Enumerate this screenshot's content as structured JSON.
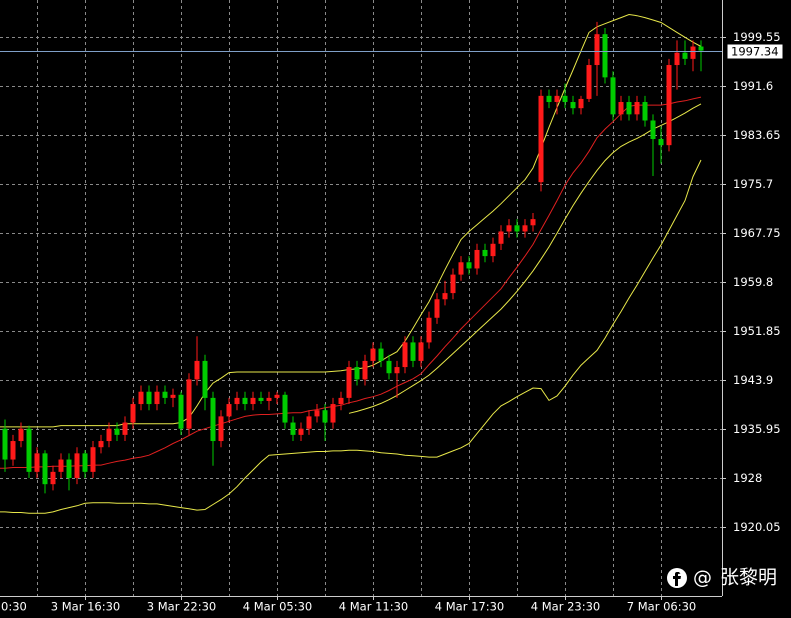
{
  "chart_data": {
    "type": "candlestick",
    "ylim": [
      1908.86,
      2005.55
    ],
    "yticks": [
      1920.05,
      1928.0,
      1935.95,
      1943.9,
      1951.85,
      1959.8,
      1967.75,
      1975.7,
      1983.65,
      1991.6,
      1999.55
    ],
    "grid": true,
    "up_color": "#ff1a1a",
    "down_color": "#00cc00",
    "current_price": 1997.34,
    "current_price_color": "#7f9fc8",
    "categories": [
      "0:30",
      null,
      null,
      null,
      null,
      null,
      null,
      null,
      null,
      null,
      null,
      null,
      "3 Mar 16:30",
      null,
      null,
      null,
      null,
      null,
      null,
      null,
      null,
      null,
      null,
      null,
      "3 Mar 22:30",
      null,
      null,
      null,
      null,
      null,
      null,
      null,
      null,
      null,
      null,
      null,
      "4 Mar 05:30",
      null,
      null,
      null,
      null,
      null,
      null,
      null,
      null,
      null,
      null,
      null,
      "4 Mar 11:30",
      null,
      null,
      null,
      null,
      null,
      null,
      null,
      null,
      null,
      null,
      null,
      "4 Mar 17:30",
      null,
      null,
      null,
      null,
      null,
      null,
      null,
      null,
      null,
      null,
      null,
      "4 Mar 23:30",
      null,
      null,
      null,
      null,
      null,
      null,
      null,
      null,
      null,
      null,
      null,
      "7 Mar 06:30",
      null,
      null,
      null,
      null,
      null
    ],
    "ohlc": [
      null,
      [
        1938,
        1940,
        1935,
        1936
      ],
      [
        1936,
        1937.5,
        1929,
        1931
      ],
      [
        1931,
        1935,
        1930,
        1934
      ],
      [
        1934,
        1937,
        1933,
        1936
      ],
      [
        1936,
        1936.5,
        1928,
        1929
      ],
      [
        1929,
        1933,
        1928,
        1932
      ],
      [
        1932,
        1932.5,
        1925.5,
        1927
      ],
      [
        1927,
        1930,
        1926,
        1929
      ],
      [
        1929,
        1932,
        1928,
        1931
      ],
      [
        1931,
        1932,
        1926,
        1928
      ],
      [
        1928,
        1933,
        1927,
        1932
      ],
      [
        1932,
        1932.5,
        1928,
        1929
      ],
      [
        1929,
        1934,
        1928,
        1933
      ],
      [
        1933,
        1935,
        1932,
        1934
      ],
      [
        1934,
        1937,
        1933,
        1936
      ],
      [
        1936,
        1937,
        1934,
        1935
      ],
      [
        1935,
        1938,
        1934,
        1937
      ],
      [
        1937,
        1941,
        1936,
        1940
      ],
      [
        1940,
        1943,
        1939,
        1942
      ],
      [
        1942,
        1943,
        1939,
        1940
      ],
      [
        1940,
        1943,
        1939,
        1942
      ],
      [
        1942,
        1943,
        1940,
        1941
      ],
      [
        1941,
        1942.5,
        1939.5,
        1941.5
      ],
      [
        1941.5,
        1942,
        1935,
        1936
      ],
      [
        1936,
        1945,
        1935,
        1944
      ],
      [
        1944,
        1951,
        1943,
        1947
      ],
      [
        1947,
        1948,
        1939,
        1941
      ],
      [
        1941,
        1942,
        1930,
        1934
      ],
      [
        1934,
        1939,
        1933,
        1938
      ],
      [
        1938,
        1941,
        1937,
        1940
      ],
      [
        1940,
        1942,
        1939,
        1941
      ],
      [
        1941,
        1942,
        1939,
        1940
      ],
      [
        1940,
        1942,
        1939,
        1941
      ],
      [
        1941,
        1942,
        1940,
        1940.5
      ],
      [
        1940.5,
        1942,
        1939,
        1941
      ],
      [
        1941,
        1942,
        1940,
        1941.5
      ],
      [
        1941.5,
        1942,
        1936,
        1937
      ],
      [
        1937,
        1938,
        1934,
        1935
      ],
      [
        1935,
        1937,
        1934,
        1936
      ],
      [
        1936,
        1939,
        1935,
        1938
      ],
      [
        1938,
        1940,
        1937,
        1939
      ],
      [
        1939,
        1940,
        1934,
        1937
      ],
      [
        1937,
        1941,
        1936,
        1940
      ],
      [
        1940,
        1942,
        1939,
        1941
      ],
      [
        1941,
        1947,
        1940,
        1946
      ],
      [
        1946,
        1947,
        1943,
        1944
      ],
      [
        1944,
        1948,
        1943,
        1947
      ],
      [
        1947,
        1950,
        1946,
        1949
      ],
      [
        1949,
        1950,
        1946,
        1947
      ],
      [
        1947,
        1948,
        1944,
        1945
      ],
      [
        1945,
        1947,
        1941,
        1946
      ],
      [
        1946,
        1951,
        1945,
        1950
      ],
      [
        1950,
        1951,
        1946,
        1947
      ],
      [
        1947,
        1951,
        1946,
        1950
      ],
      [
        1950,
        1955,
        1949,
        1954
      ],
      [
        1954,
        1958,
        1953,
        1957
      ],
      [
        1957,
        1960,
        1956,
        1958
      ],
      [
        1958,
        1962,
        1957,
        1961
      ],
      [
        1961,
        1964,
        1960,
        1963
      ],
      [
        1963,
        1964,
        1961,
        1962
      ],
      [
        1962,
        1966,
        1961,
        1965
      ],
      [
        1965,
        1966,
        1963,
        1964
      ],
      [
        1964,
        1967,
        1963,
        1966
      ],
      [
        1966,
        1969,
        1965,
        1968
      ],
      [
        1968,
        1970,
        1967,
        1969
      ],
      [
        1969,
        1970,
        1967,
        1968
      ],
      [
        1968,
        1970,
        1967,
        1969
      ],
      [
        1969,
        1971,
        1968,
        1970
      ],
      [
        1976,
        1991,
        1974.5,
        1990
      ],
      [
        1990,
        1991,
        1988,
        1989
      ],
      [
        1989,
        1991,
        1987,
        1990
      ],
      [
        1990,
        1992,
        1988,
        1989
      ],
      [
        1989,
        1990,
        1987,
        1988
      ],
      [
        1988,
        1990,
        1987,
        1989.5
      ],
      [
        1989.5,
        1996,
        1989,
        1995
      ],
      [
        1995,
        2002,
        1990,
        2000
      ],
      [
        2000,
        2001,
        1992,
        1993
      ],
      [
        1993,
        1994,
        1986,
        1987
      ],
      [
        1987,
        1990,
        1986,
        1989
      ],
      [
        1989,
        1990,
        1986,
        1987
      ],
      [
        1987,
        1990,
        1986,
        1989
      ],
      [
        1989,
        1990,
        1985,
        1986
      ],
      [
        1986,
        1987,
        1977,
        1983
      ],
      [
        1983,
        1985,
        1979,
        1982
      ],
      [
        1982,
        1996,
        1981,
        1995
      ],
      [
        1995,
        1999,
        1991,
        1997
      ],
      [
        1997,
        1999,
        1995,
        1996
      ],
      [
        1996,
        1999,
        1994,
        1998
      ],
      [
        1998,
        1999,
        1994,
        1997.34
      ]
    ],
    "lines": [
      {
        "color": "#e8e84a",
        "values": [
          null,
          1936.3,
          1936.3,
          1936.3,
          1936.3,
          1936.3,
          1936.3,
          1936.3,
          1936.3,
          1936.5,
          1936.5,
          1936.5,
          1936.5,
          1936.5,
          1936.5,
          1936.5,
          1936.5,
          1936.8,
          1936.8,
          1936.8,
          1936.8,
          1936.8,
          1936.8,
          1936.8,
          1937,
          1937.8,
          1939.7,
          1941.8,
          1943.4,
          1944.2,
          1945.1,
          1945.2,
          1945.2,
          1945.2,
          1945.2,
          1945.2,
          1945.2,
          1945.2,
          1945.2,
          1945.2,
          1945.2,
          1945.2,
          1945.2,
          1945.3,
          1945.4,
          1945.6,
          1945.7,
          1945.9,
          1946.3,
          1947,
          1947.8,
          1948.5,
          1950.2,
          1952.3,
          1954.5,
          1956.6,
          1959.2,
          1961.8,
          1964.3,
          1966.7,
          1968,
          1969.1,
          1970.2,
          1971.3,
          1972.5,
          1973.8,
          1975.1,
          1976.4,
          1978.3,
          1981.5,
          1984.9,
          1988.1,
          1991.2,
          1994.2,
          1997.3,
          2000.3,
          2001.2,
          2001.7,
          2002.2,
          2002.7,
          2003.2,
          2003,
          2002.7,
          2002.3,
          2001.9,
          2001.1,
          2000.3,
          1999.5,
          1998.7,
          1998
        ]
      },
      {
        "color": "#e02020",
        "values": [
          null,
          1929.6,
          1929.6,
          1929.7,
          1929.7,
          1929.7,
          1929.8,
          1929.8,
          1929.9,
          1929.9,
          1929.9,
          1930,
          1930,
          1930.1,
          1930.1,
          1930.4,
          1930.7,
          1930.9,
          1931.2,
          1931.4,
          1931.7,
          1932.3,
          1932.9,
          1933.6,
          1934.2,
          1934.9,
          1935.6,
          1936,
          1936.4,
          1936.8,
          1937.2,
          1937.6,
          1938,
          1938.2,
          1938.3,
          1938.3,
          1938.4,
          1938.5,
          1938.6,
          1938.6,
          1938.9,
          1939.1,
          1939.4,
          1939.6,
          1939.8,
          1940.2,
          1940.5,
          1940.9,
          1941.2,
          1941.6,
          1942.2,
          1942.9,
          1943.5,
          1944.1,
          1944.9,
          1946.4,
          1947.8,
          1949.3,
          1950.7,
          1952.2,
          1953.5,
          1954.8,
          1956.1,
          1957.4,
          1958.7,
          1960.5,
          1962.2,
          1964,
          1965.9,
          1968.3,
          1970.6,
          1973,
          1975.5,
          1977.5,
          1979.1,
          1981,
          1983.2,
          1984.6,
          1985.8,
          1987.1,
          1988.3,
          1988.5,
          1988.5,
          1988.5,
          1988.5,
          1988.7,
          1989,
          1989.2,
          1989.5,
          1989.8
        ]
      },
      {
        "color": "#e8e84a",
        "values": [
          null,
          null,
          null,
          null,
          null,
          null,
          null,
          null,
          null,
          null,
          null,
          null,
          null,
          null,
          null,
          null,
          null,
          null,
          null,
          null,
          null,
          null,
          null,
          null,
          null,
          null,
          null,
          null,
          null,
          null,
          null,
          null,
          null,
          null,
          null,
          null,
          null,
          null,
          null,
          null,
          null,
          null,
          null,
          null,
          null,
          1938.5,
          1938.8,
          1939.2,
          1939.6,
          1940.1,
          1940.7,
          1941.4,
          1942.2,
          1943,
          1943.8,
          1944.7,
          1945.8,
          1947,
          1948.2,
          1949.4,
          1950.6,
          1951.8,
          1953,
          1954.2,
          1955.4,
          1956.8,
          1958.3,
          1959.9,
          1961.6,
          1963.5,
          1965.5,
          1967.7,
          1970,
          1972.2,
          1974.2,
          1976.1,
          1977.9,
          1979.5,
          1980.8,
          1981.8,
          1982.5,
          1983.1,
          1983.8,
          1984.6,
          1985.2,
          1985.8,
          1986.5,
          1987.2,
          1988,
          1988.7
        ]
      },
      {
        "color": "#e8e84a",
        "values": [
          null,
          1922.5,
          1922.5,
          1922.4,
          1922.4,
          1922.3,
          1922.3,
          1922.3,
          1922.5,
          1922.9,
          1923.2,
          1923.5,
          1923.9,
          1924,
          1924,
          1924,
          1923.9,
          1923.9,
          1923.9,
          1923.9,
          1923.8,
          1923.8,
          1923.6,
          1923.4,
          1923.2,
          1923,
          1922.8,
          1922.9,
          1923.7,
          1924.5,
          1925.4,
          1926.6,
          1928,
          1929.3,
          1930.6,
          1931.7,
          1931.8,
          1931.9,
          1932,
          1932.1,
          1932.2,
          1932.3,
          1932.3,
          1932.4,
          1932.4,
          1932.5,
          1932.5,
          1932.4,
          1932.3,
          1932.1,
          1932,
          1931.9,
          1931.7,
          1931.6,
          1931.5,
          1931.4,
          1931.4,
          1931.9,
          1932.4,
          1932.9,
          1933.6,
          1935.2,
          1936.8,
          1938.4,
          1939.7,
          1940.4,
          1941.2,
          1941.9,
          1942.6,
          1942.5,
          1940.6,
          1941.3,
          1942.9,
          1944.7,
          1946.3,
          1947.5,
          1948.7,
          1950.7,
          1952.9,
          1955,
          1957.2,
          1959.3,
          1961.5,
          1963.7,
          1965.8,
          1968.2,
          1970.6,
          1973,
          1976.9,
          1979.6
        ]
      }
    ]
  },
  "watermark": {
    "at": "@",
    "name": "张黎明"
  }
}
